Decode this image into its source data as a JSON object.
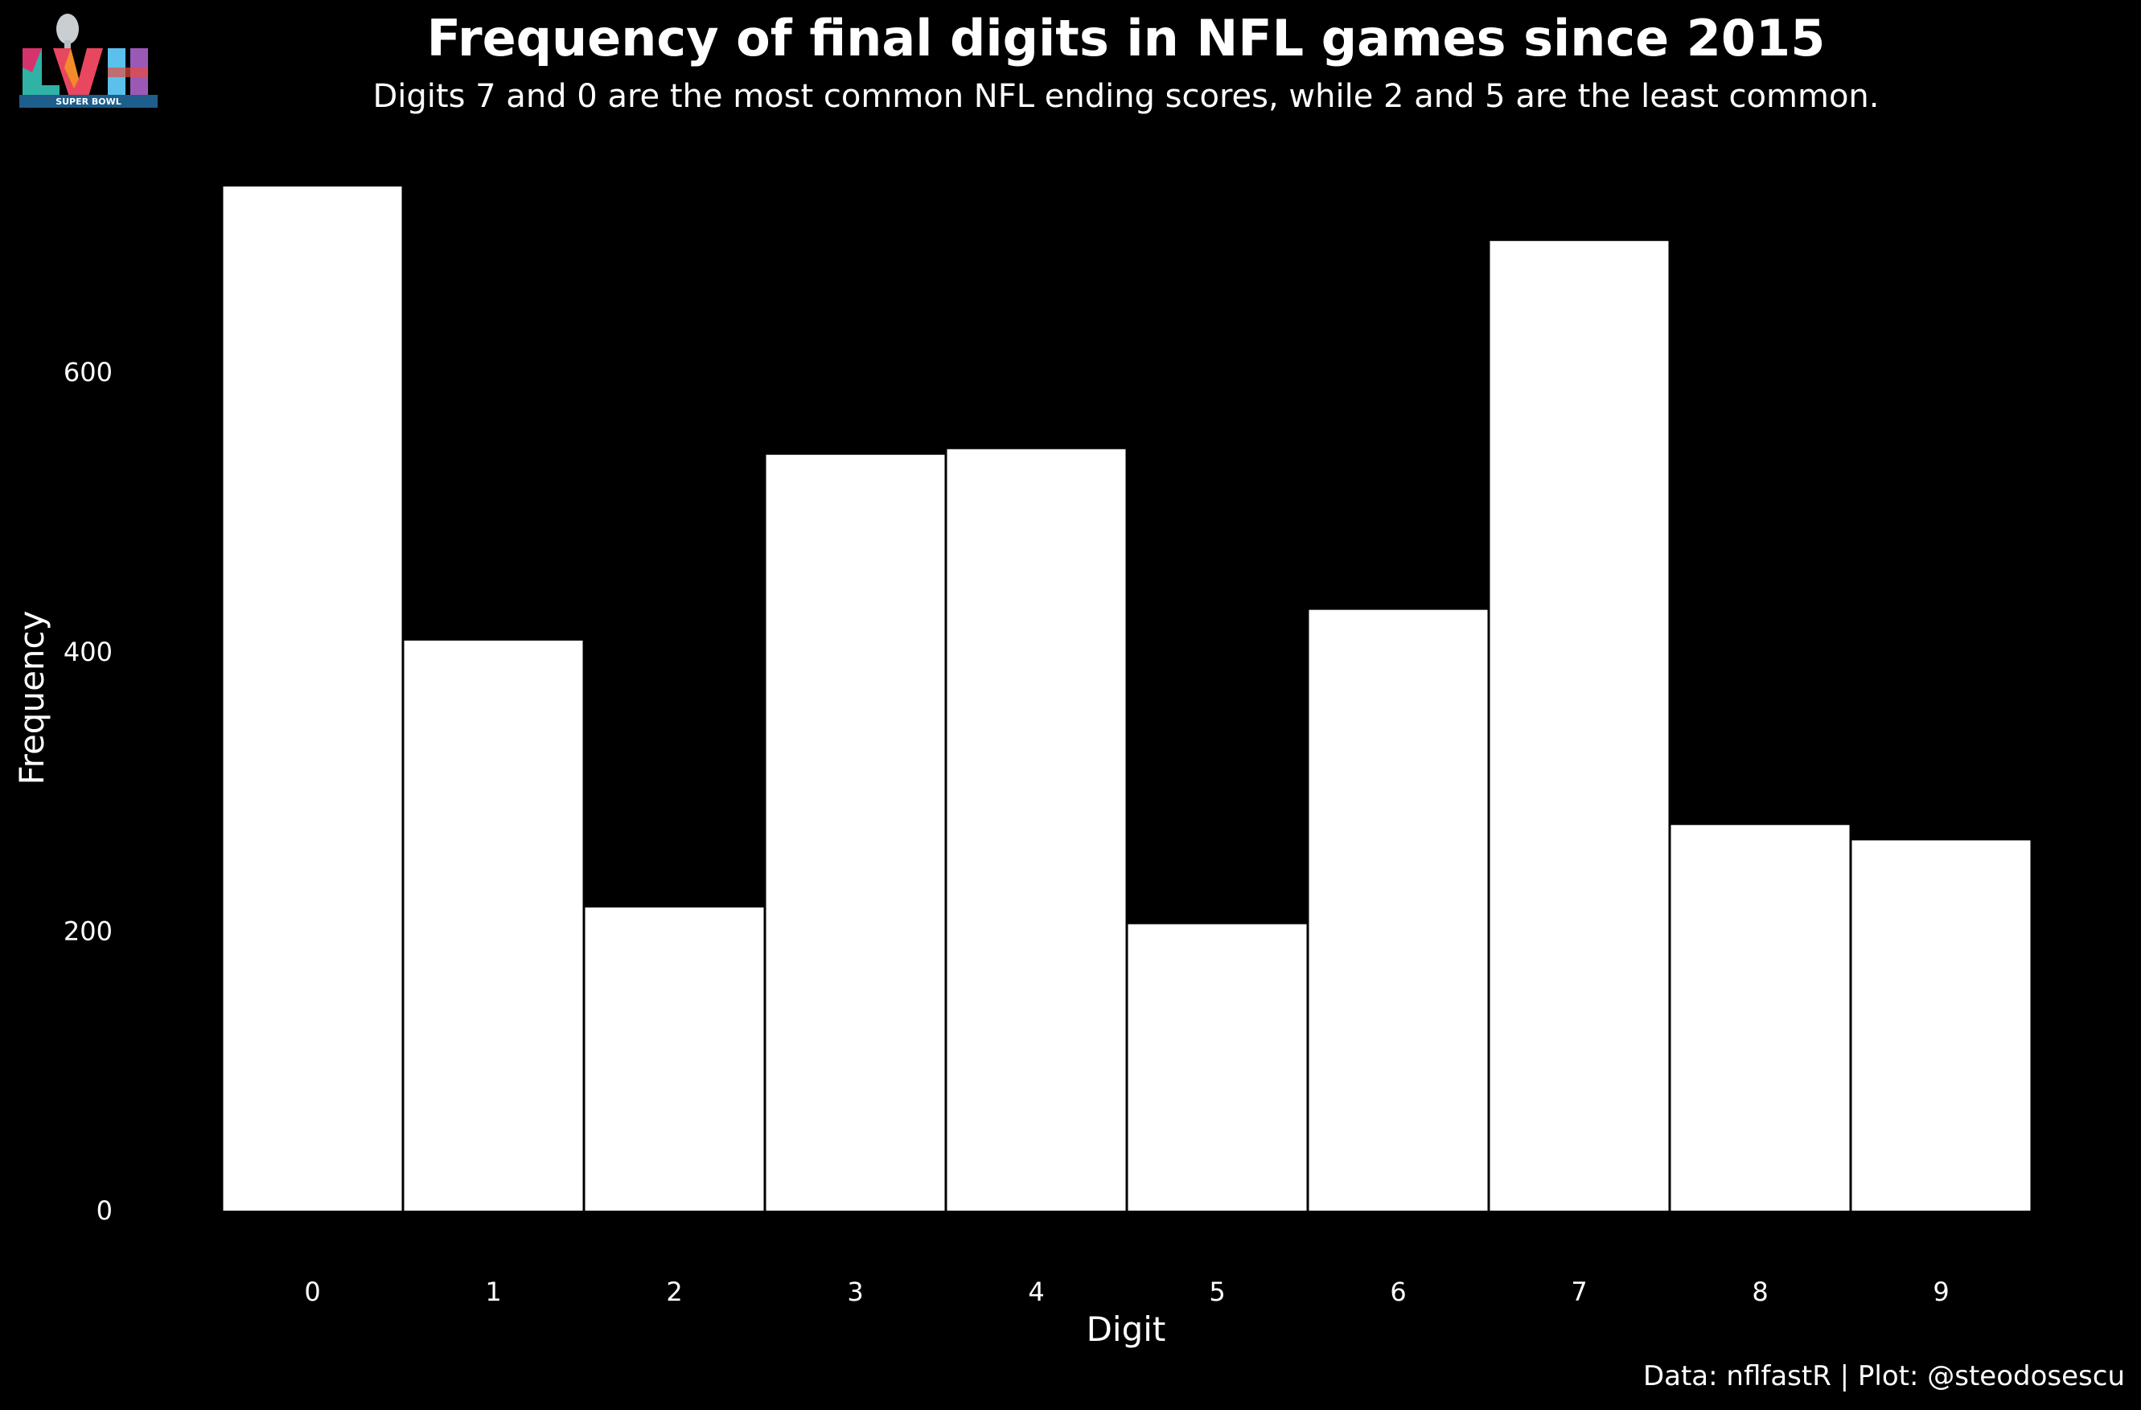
{
  "caption": "Data: nflfastR | Plot: @steodosescu",
  "logo": {
    "icon": "super-bowl-lvii-logo",
    "text": "SUPER BOWL"
  },
  "colors": {
    "background": "#000000",
    "bars": "#ffffff",
    "text": "#ffffff"
  },
  "chart_data": {
    "type": "bar",
    "title": "Frequency of final digits in NFL games since 2015",
    "subtitle": "Digits 7 and 0 are the most common NFL ending scores, while 2 and 5 are the least common.",
    "xlabel": "Digit",
    "ylabel": "Frequency",
    "categories": [
      "0",
      "1",
      "2",
      "3",
      "4",
      "5",
      "6",
      "7",
      "8",
      "9"
    ],
    "values": [
      733,
      408,
      217,
      541,
      545,
      205,
      430,
      694,
      276,
      265
    ],
    "ylim": [
      0,
      733
    ],
    "yticks": [
      0,
      200,
      400,
      600
    ],
    "grid": false,
    "legend": "none"
  }
}
